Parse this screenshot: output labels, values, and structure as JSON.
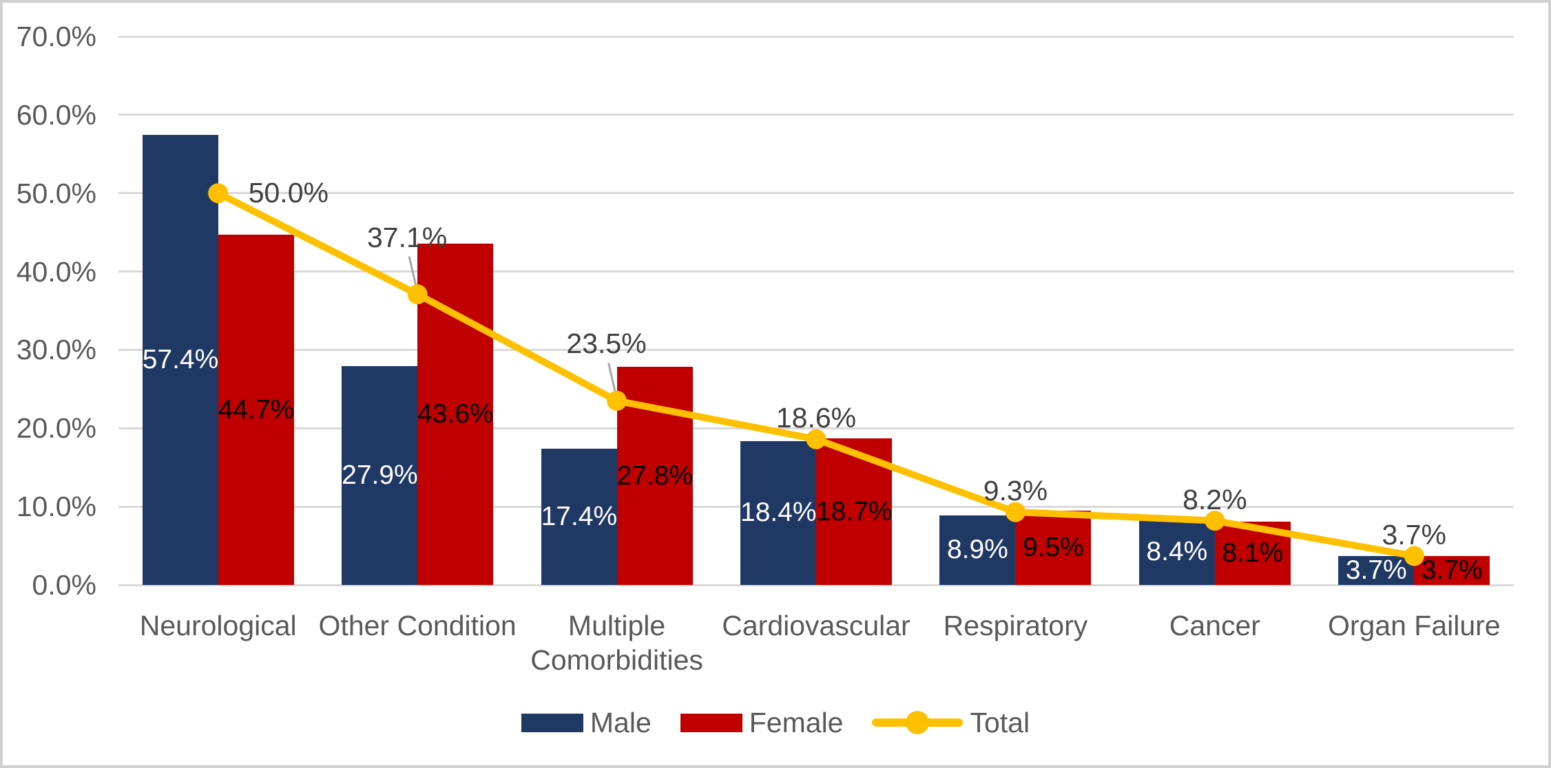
{
  "chart_data": {
    "type": "combo-bar-line",
    "title": "",
    "categories": [
      "Neurological",
      "Other Condition",
      "Multiple Comorbidities",
      "Cardiovascular",
      "Respiratory",
      "Cancer",
      "Organ Failure"
    ],
    "series": [
      {
        "name": "Male",
        "chart_type": "bar",
        "color": "#203864",
        "values": [
          57.4,
          27.9,
          17.4,
          18.4,
          8.9,
          8.4,
          3.7
        ],
        "data_labels": [
          "57.4%",
          "27.9%",
          "17.4%",
          "18.4%",
          "8.9%",
          "8.4%",
          "3.7%"
        ],
        "label_color": "#FFFFFF"
      },
      {
        "name": "Female",
        "chart_type": "bar",
        "color": "#C00000",
        "values": [
          44.7,
          43.6,
          27.8,
          18.7,
          9.5,
          8.1,
          3.7
        ],
        "data_labels": [
          "44.7%",
          "43.6%",
          "27.8%",
          "18.7%",
          "9.5%",
          "8.1%",
          "3.7%"
        ],
        "label_color": "#000000"
      },
      {
        "name": "Total",
        "chart_type": "line",
        "color": "#FFC000",
        "values": [
          50.0,
          37.1,
          23.5,
          18.6,
          9.3,
          8.2,
          3.7
        ],
        "data_labels": [
          "50.0%",
          "37.1%",
          "23.5%",
          "18.6%",
          "9.3%",
          "8.2%",
          "3.7%"
        ],
        "label_color": "#404040"
      }
    ],
    "ylim": [
      0,
      70
    ],
    "yticks": [
      0,
      10,
      20,
      30,
      40,
      50,
      60,
      70
    ],
    "ytick_labels": [
      "0.0%",
      "10.0%",
      "20.0%",
      "30.0%",
      "40.0%",
      "50.0%",
      "60.0%",
      "70.0%"
    ],
    "grid": true,
    "xlabel": "",
    "ylabel": "",
    "legend_position": "bottom"
  },
  "legend": {
    "items": [
      {
        "label": "Male",
        "swatch": "bar",
        "color": "#203864"
      },
      {
        "label": "Female",
        "swatch": "bar",
        "color": "#C00000"
      },
      {
        "label": "Total",
        "swatch": "line-marker",
        "color": "#FFC000"
      }
    ]
  },
  "style_colors": {
    "gridline": "#D9D9D9",
    "axis_text": "#595959",
    "total_label_text": "#404040",
    "leader_line": "#A6A6A6",
    "chart_border": "#D0D0D0",
    "background": "#FFFFFF"
  }
}
